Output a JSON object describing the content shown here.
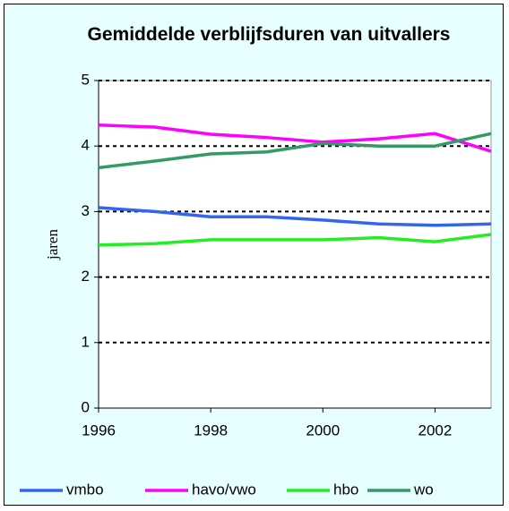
{
  "chart_data": {
    "type": "line",
    "title": "Gemiddelde verblijfsduren van uitvallers",
    "y_label": "jaren",
    "x": [
      1996,
      1997,
      1998,
      1999,
      2000,
      2001,
      2002,
      2003
    ],
    "xlim": [
      1996,
      2003
    ],
    "xticks": [
      1996,
      1998,
      2000,
      2002
    ],
    "ylim": [
      0,
      5
    ],
    "yticks": [
      0,
      1,
      2,
      3,
      4,
      5
    ],
    "grid": true,
    "legend": "bottom",
    "series": [
      {
        "name": "vmbo",
        "color": "#3366ee",
        "values": [
          3.06,
          3.0,
          2.92,
          2.92,
          2.87,
          2.81,
          2.79,
          2.81
        ]
      },
      {
        "name": "havo/vwo",
        "color": "#ff00ff",
        "values": [
          4.32,
          4.29,
          4.18,
          4.13,
          4.06,
          4.11,
          4.19,
          3.92
        ]
      },
      {
        "name": "hbo",
        "color": "#22ee22",
        "values": [
          2.49,
          2.51,
          2.57,
          2.57,
          2.57,
          2.6,
          2.54,
          2.65
        ]
      },
      {
        "name": "wo",
        "color": "#339966",
        "values": [
          3.67,
          3.77,
          3.88,
          3.91,
          4.04,
          4.0,
          4.0,
          4.19
        ]
      }
    ]
  }
}
